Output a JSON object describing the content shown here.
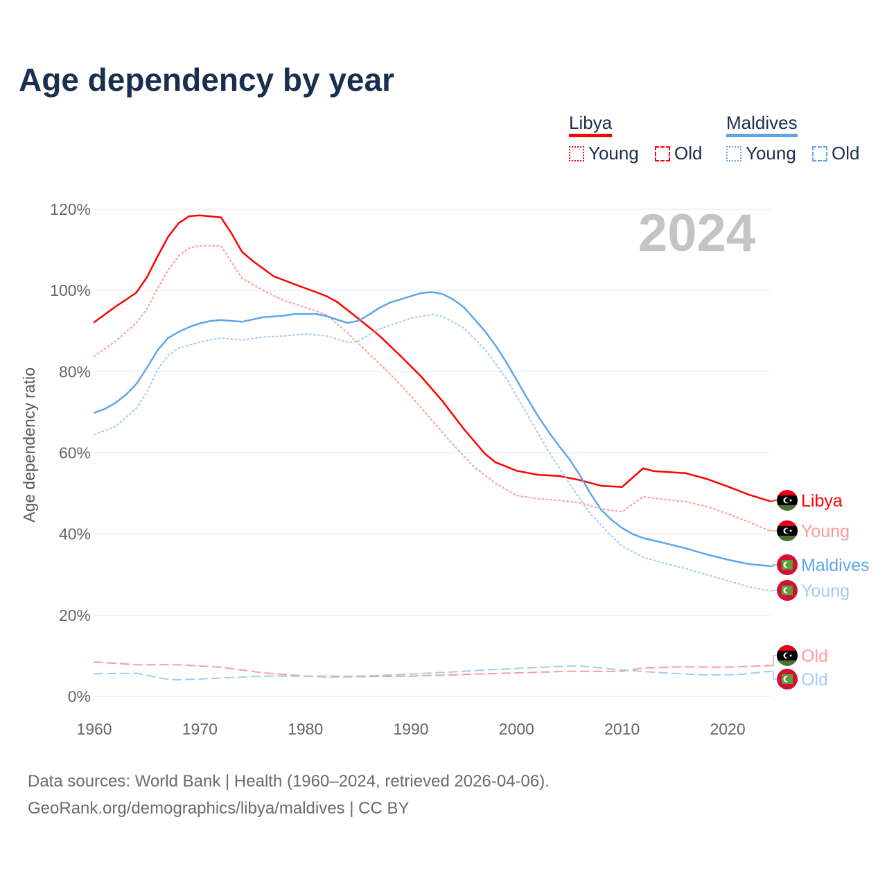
{
  "title": "Age dependency by year",
  "legend": {
    "groups": [
      {
        "name": "Libya",
        "color": "#ff0000",
        "items": [
          "Young",
          "Old"
        ]
      },
      {
        "name": "Maldives",
        "color": "#5ea5ec",
        "items": [
          "Young",
          "Old"
        ]
      }
    ]
  },
  "watermark_year": "2024",
  "footer": {
    "line1": "Data sources: World Bank | Health (1960–2024, retrieved 2026-04-06).",
    "line2": "GeoRank.org/demographics/libya/maldives | CC BY"
  },
  "chart_data": {
    "type": "line",
    "title": "Age dependency by year",
    "xlabel": "",
    "ylabel": "Age dependency ratio",
    "xlim": [
      1960,
      2024
    ],
    "ylim": [
      0,
      120
    ],
    "x_ticks": [
      "1960",
      "1970",
      "1980",
      "1990",
      "2000",
      "2010",
      "2020"
    ],
    "y_ticks": [
      "0%",
      "20%",
      "40%",
      "60%",
      "80%",
      "100%",
      "120%"
    ],
    "grid": true,
    "series": [
      {
        "name": "Libya",
        "end_label": "Libya",
        "country": "libya",
        "style": "solid",
        "color": "#ff0000",
        "x": [
          1960,
          1962,
          1963,
          1964,
          1965,
          1966,
          1967,
          1968,
          1969,
          1970,
          1972,
          1973,
          1974,
          1975,
          1977,
          1978,
          1979,
          1981,
          1982,
          1983,
          1985,
          1987,
          1989,
          1991,
          1993,
          1995,
          1997,
          1998,
          2000,
          2002,
          2004,
          2006,
          2008,
          2010,
          2012,
          2013,
          2016,
          2018,
          2020,
          2022,
          2024
        ],
        "y": [
          92.2,
          96.0,
          97.7,
          99.5,
          103.3,
          108.4,
          113.2,
          116.6,
          118.3,
          118.5,
          118.0,
          114.1,
          109.5,
          107.3,
          103.5,
          102.5,
          101.5,
          99.6,
          98.6,
          97.2,
          93.1,
          88.9,
          83.9,
          78.7,
          72.7,
          65.9,
          59.8,
          57.7,
          55.6,
          54.6,
          54.3,
          53.3,
          51.9,
          51.6,
          56.2,
          55.5,
          55.0,
          53.6,
          51.7,
          49.7,
          48.1
        ]
      },
      {
        "name": "Libya Young",
        "end_label": "Young",
        "country": "libya",
        "style": "dotted",
        "color": "#ff9a9a",
        "x": [
          1960,
          1962,
          1964,
          1965,
          1966,
          1967,
          1968,
          1969,
          1970,
          1972,
          1973,
          1974,
          1976,
          1978,
          1980,
          1982,
          1984,
          1986,
          1988,
          1990,
          1992,
          1994,
          1996,
          1998,
          2000,
          2002,
          2004,
          2006,
          2008,
          2010,
          2012,
          2014,
          2016,
          2018,
          2020,
          2022,
          2024
        ],
        "y": [
          83.8,
          87.5,
          92.0,
          95.5,
          100.5,
          105.0,
          108.5,
          110.5,
          111.0,
          111.0,
          107.0,
          103.0,
          100.0,
          97.5,
          95.8,
          94.0,
          89.5,
          84.5,
          79.5,
          74.0,
          68.0,
          62.0,
          56.5,
          52.5,
          49.5,
          48.7,
          48.3,
          47.7,
          46.2,
          45.5,
          49.2,
          48.5,
          48.0,
          46.8,
          45.0,
          43.0,
          40.8
        ]
      },
      {
        "name": "Maldives",
        "end_label": "Maldives",
        "country": "maldives",
        "style": "solid",
        "color": "#5ea5ec",
        "x": [
          1960,
          1961,
          1962,
          1963,
          1964,
          1965,
          1966,
          1967,
          1968,
          1969,
          1970,
          1971,
          1972,
          1974,
          1976,
          1978,
          1979,
          1981,
          1982,
          1983,
          1984,
          1985,
          1986,
          1987,
          1988,
          1990,
          1991,
          1992,
          1993,
          1994,
          1995,
          1996,
          1997,
          1998,
          1999,
          2000,
          2001,
          2002,
          2003,
          2004,
          2005,
          2006,
          2007,
          2008,
          2009,
          2010,
          2011,
          2012,
          2014,
          2016,
          2018,
          2020,
          2022,
          2024
        ],
        "y": [
          69.9,
          70.8,
          72.3,
          74.3,
          77.0,
          81.0,
          85.3,
          88.3,
          89.8,
          91.0,
          91.9,
          92.5,
          92.7,
          92.3,
          93.4,
          93.8,
          94.2,
          94.2,
          93.7,
          92.8,
          92.0,
          92.5,
          94.0,
          95.7,
          97.0,
          98.6,
          99.4,
          99.6,
          99.1,
          97.8,
          95.9,
          93.0,
          90.0,
          86.5,
          82.5,
          78.0,
          73.5,
          69.2,
          65.3,
          61.8,
          58.5,
          54.5,
          50.0,
          46.0,
          43.5,
          41.5,
          40.0,
          39.0,
          37.8,
          36.5,
          35.0,
          33.7,
          32.6,
          32.1
        ]
      },
      {
        "name": "Maldives Young",
        "end_label": "Young",
        "country": "maldives",
        "style": "dotted",
        "color": "#a3cbf1",
        "x": [
          1960,
          1962,
          1964,
          1965,
          1966,
          1967,
          1968,
          1970,
          1972,
          1974,
          1976,
          1978,
          1980,
          1982,
          1984,
          1985,
          1987,
          1990,
          1992,
          1993,
          1995,
          1997,
          1999,
          2001,
          2003,
          2005,
          2007,
          2009,
          2010,
          2012,
          2014,
          2016,
          2018,
          2020,
          2022,
          2024
        ],
        "y": [
          64.5,
          66.5,
          71.0,
          75.0,
          80.5,
          84.0,
          85.8,
          87.3,
          88.3,
          87.8,
          88.5,
          88.8,
          89.3,
          88.8,
          87.2,
          87.5,
          90.5,
          93.2,
          94.1,
          93.6,
          90.8,
          85.5,
          78.5,
          69.5,
          60.5,
          52.5,
          45.0,
          39.5,
          37.0,
          34.3,
          32.8,
          31.5,
          30.0,
          28.5,
          27.0,
          26.0
        ]
      },
      {
        "name": "Libya Old",
        "end_label": "Old",
        "country": "libya",
        "style": "dashed",
        "color": "#ff9a9a",
        "x": [
          1960,
          1964,
          1968,
          1972,
          1976,
          1980,
          1982,
          1990,
          2000,
          2005,
          2010,
          2012,
          2016,
          2020,
          2024
        ],
        "y": [
          8.5,
          7.8,
          7.8,
          7.2,
          5.8,
          5.0,
          4.8,
          5.0,
          5.8,
          6.2,
          6.2,
          7.0,
          7.3,
          7.2,
          7.6
        ]
      },
      {
        "name": "Maldives Old",
        "end_label": "Old",
        "country": "maldives",
        "style": "dashed",
        "color": "#a3cbf1",
        "x": [
          1960,
          1964,
          1965,
          1967,
          1968,
          1972,
          1976,
          1980,
          1985,
          1990,
          1995,
          2000,
          2005,
          2006,
          2010,
          2014,
          2018,
          2021,
          2024
        ],
        "y": [
          5.6,
          5.7,
          5.2,
          4.2,
          4.1,
          4.5,
          5.0,
          5.0,
          5.0,
          5.5,
          6.2,
          6.9,
          7.5,
          7.5,
          6.5,
          5.8,
          5.3,
          5.4,
          6.2
        ]
      }
    ]
  }
}
